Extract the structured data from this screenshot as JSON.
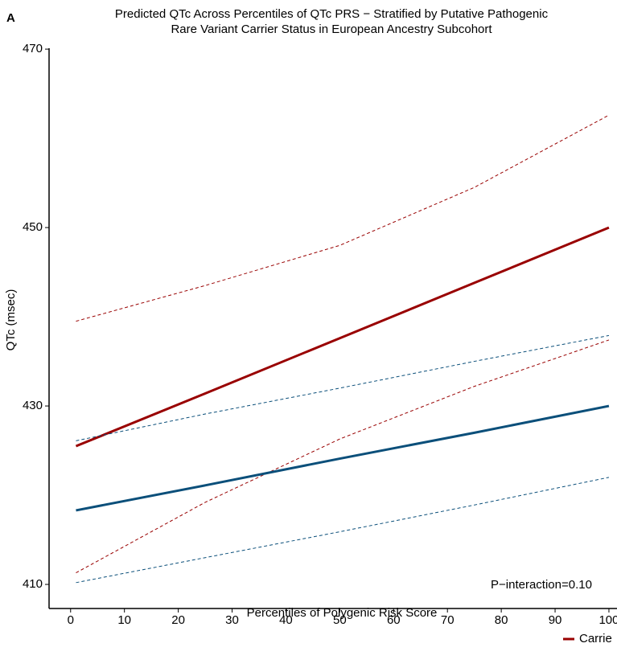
{
  "chart_data": {
    "type": "line",
    "panel_label": "A",
    "title": [
      "Predicted QTc Across Percentiles of QTc PRS − Stratified by Putative Pathogenic",
      "Rare Variant Carrier Status in European Ancestry Subcohort"
    ],
    "xlabel": "Percentiles of Polygenic Risk Score",
    "ylabel": "QTc (msec)",
    "annotation": "P−interaction=0.10",
    "x": [
      1,
      25,
      50,
      75,
      100
    ],
    "series": [
      {
        "name": "Carrie",
        "color": "#990000",
        "values": [
          425.5,
          431.4,
          437.6,
          443.8,
          450
        ],
        "lower": [
          411.3,
          419.2,
          426.3,
          432.2,
          437.4
        ],
        "upper": [
          439.5,
          443.5,
          448,
          454.5,
          462.6
        ]
      },
      {
        "color": "#0b4f7a",
        "values": [
          418.3,
          421.1,
          424.1,
          427.0,
          430
        ],
        "lower": [
          410.2,
          413,
          415.9,
          418.9,
          422
        ],
        "upper": [
          426.1,
          429.1,
          432,
          435,
          437.9
        ]
      }
    ],
    "xlim": [
      -4,
      101.5
    ],
    "ylim": [
      407.3,
      470.1
    ],
    "xticks": [
      0,
      10,
      20,
      30,
      40,
      50,
      60,
      70,
      80,
      90,
      100
    ],
    "yticks": [
      410,
      430,
      450,
      470
    ],
    "grid": false
  }
}
